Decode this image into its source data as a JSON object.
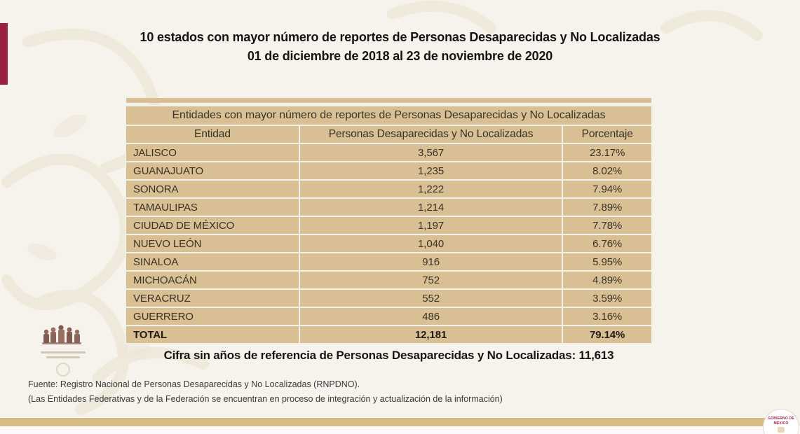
{
  "slide": {
    "title_line1": "10 estados con mayor número de reportes de Personas Desaparecidas y No Localizadas",
    "title_line2": "01 de diciembre de 2018 al 23 de noviembre de 2020"
  },
  "table": {
    "caption": "Entidades con mayor número de reportes de Personas Desaparecidas y No Localizadas",
    "columns": [
      "Entidad",
      "Personas Desaparecidas y No Localizadas",
      "Porcentaje"
    ],
    "rows": [
      [
        "JALISCO",
        "3,567",
        "23.17%"
      ],
      [
        "GUANAJUATO",
        "1,235",
        "8.02%"
      ],
      [
        "SONORA",
        "1,222",
        "7.94%"
      ],
      [
        "TAMAULIPAS",
        "1,214",
        "7.89%"
      ],
      [
        "CIUDAD DE MÉXICO",
        "1,197",
        "7.78%"
      ],
      [
        "NUEVO LEÓN",
        "1,040",
        "6.76%"
      ],
      [
        "SINALOA",
        "916",
        "5.95%"
      ],
      [
        "MICHOACÁN",
        "752",
        "4.89%"
      ],
      [
        "VERACRUZ",
        "552",
        "3.59%"
      ],
      [
        "GUERRERO",
        "486",
        "3.16%"
      ]
    ],
    "total_row": [
      "TOTAL",
      "12,181",
      "79.14%"
    ]
  },
  "note": "Cifra sin años de referencia de Personas Desaparecidas y No Localizadas: 11,613",
  "footer": {
    "source": "Fuente: Registro Nacional de Personas Desaparecidas y No Localizadas (RNPDNO).",
    "disclaimer": "(Las Entidades Federativas y de la Federación se encuentran en proceso de integración y actualización de la información)"
  },
  "badge": {
    "line1": "GOBIERNO DE",
    "line2": "MÉXICO"
  },
  "colors": {
    "accent_maroon": "#9B2143",
    "table_tan": "#D9BF94",
    "bottom_gold": "#D5BB84",
    "background": "#F6F3EC"
  },
  "chart_data": {
    "type": "table",
    "title": "Entidades con mayor número de reportes de Personas Desaparecidas y No Localizadas",
    "columns": [
      "Entidad",
      "Personas Desaparecidas y No Localizadas",
      "Porcentaje"
    ],
    "rows": [
      [
        "JALISCO",
        3567,
        "23.17%"
      ],
      [
        "GUANAJUATO",
        1235,
        "8.02%"
      ],
      [
        "SONORA",
        1222,
        "7.94%"
      ],
      [
        "TAMAULIPAS",
        1214,
        "7.89%"
      ],
      [
        "CIUDAD DE MÉXICO",
        1197,
        "7.78%"
      ],
      [
        "NUEVO LEÓN",
        1040,
        "6.76%"
      ],
      [
        "SINALOA",
        916,
        "5.95%"
      ],
      [
        "MICHOACÁN",
        752,
        "4.89%"
      ],
      [
        "VERACRUZ",
        552,
        "3.59%"
      ],
      [
        "GUERRERO",
        486,
        "3.16%"
      ],
      [
        "TOTAL",
        12181,
        "79.14%"
      ]
    ],
    "footnote": "Cifra sin años de referencia de Personas Desaparecidas y No Localizadas: 11,613"
  }
}
